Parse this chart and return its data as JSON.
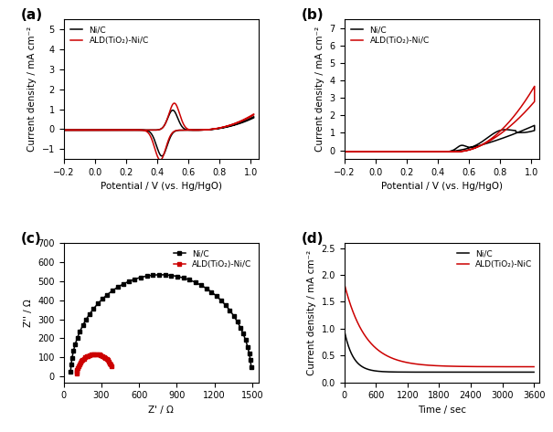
{
  "panel_labels": [
    "(a)",
    "(b)",
    "(c)",
    "(d)"
  ],
  "color_black": "#000000",
  "color_red": "#cc0000",
  "panel_a": {
    "xlabel": "Potential / V (vs. Hg/HgO)",
    "ylabel": "Current density / mA cm⁻²",
    "xlim": [
      -0.2,
      1.05
    ],
    "ylim": [
      -1.5,
      5.5
    ],
    "yticks": [
      -1,
      0,
      1,
      2,
      3,
      4,
      5
    ],
    "xticks": [
      -0.2,
      0.0,
      0.2,
      0.4,
      0.6,
      0.8,
      1.0
    ],
    "legend": [
      "Ni/C",
      "ALD(TiO₂)-Ni/C"
    ]
  },
  "panel_b": {
    "xlabel": "Potential / V (vs. Hg/HgO)",
    "ylabel": "Current density / mA cm⁻²",
    "xlim": [
      -0.2,
      1.05
    ],
    "ylim": [
      -0.5,
      7.5
    ],
    "yticks": [
      0,
      1,
      2,
      3,
      4,
      5,
      6,
      7
    ],
    "xticks": [
      -0.2,
      0.0,
      0.2,
      0.4,
      0.6,
      0.8,
      1.0
    ],
    "legend": [
      "Ni/C",
      "ALD(TiO₂)-Ni/C"
    ]
  },
  "panel_c": {
    "xlabel": "Z' / Ω",
    "ylabel": "Z'' / Ω",
    "xlim": [
      0,
      1550
    ],
    "ylim": [
      -30,
      700
    ],
    "yticks": [
      0,
      100,
      200,
      300,
      400,
      500,
      600,
      700
    ],
    "xticks": [
      0,
      300,
      600,
      900,
      1200,
      1500
    ],
    "legend": [
      "Ni/C",
      "ALD(TiO₂)-Ni/C"
    ]
  },
  "panel_d": {
    "xlabel": "Time / sec",
    "ylabel": "Current density / mA cm⁻²",
    "xlim": [
      0,
      3700
    ],
    "ylim": [
      0,
      2.6
    ],
    "yticks": [
      0.0,
      0.5,
      1.0,
      1.5,
      2.0,
      2.5
    ],
    "xticks": [
      0,
      600,
      1200,
      1800,
      2400,
      3000,
      3600
    ],
    "legend": [
      "Ni/C",
      "ALD(TiO₂)-NiC"
    ]
  }
}
